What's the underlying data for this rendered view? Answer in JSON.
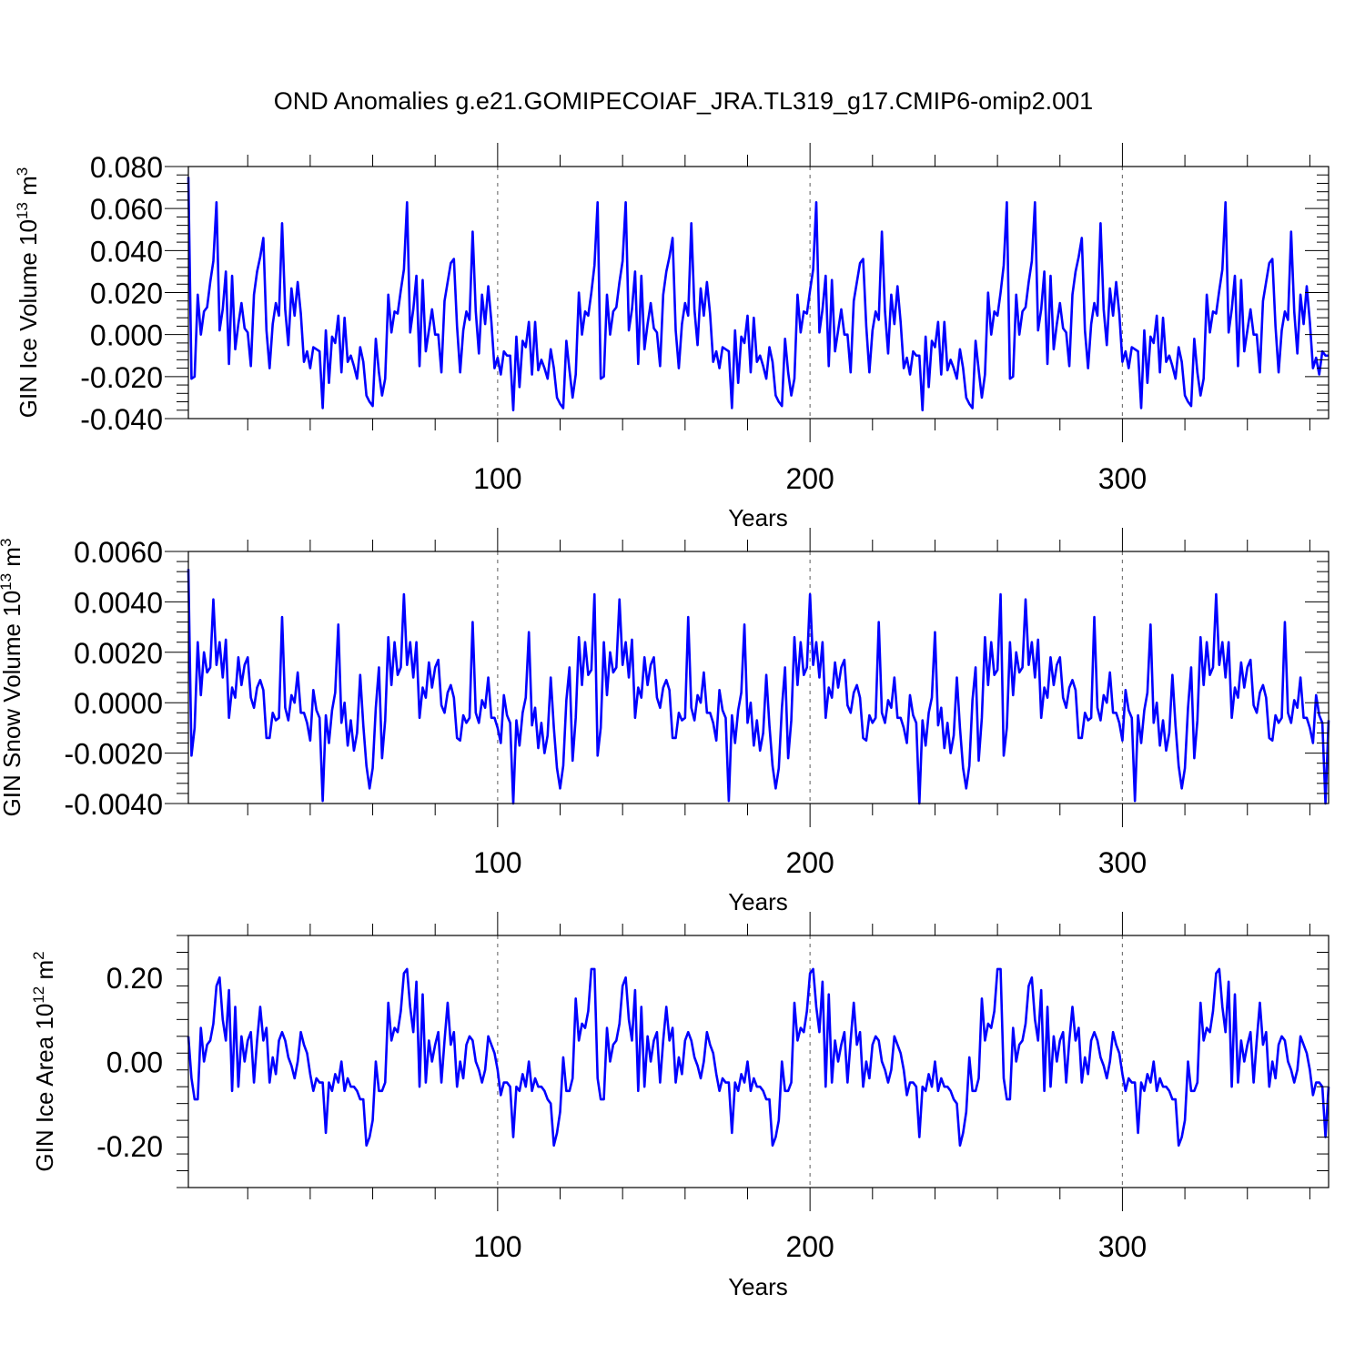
{
  "title": "OND Anomalies g.e21.GOMIPECOIAF_JRA.TL319_g17.CMIP6-omip2.001",
  "colors": {
    "series": "#0000ff",
    "axes": "#000000",
    "grid": "#777777",
    "background": "#ffffff"
  },
  "chart_data": [
    {
      "type": "line",
      "name": "ice-volume",
      "title": "",
      "xlabel": "Years",
      "ylabel": {
        "main": "GIN Ice Volume 10",
        "exp": "13",
        "unit": " m",
        "unit_exp": "3"
      },
      "xlim": [
        1,
        366
      ],
      "ylim": [
        -0.04,
        0.08
      ],
      "xticks": [
        100,
        200,
        300
      ],
      "xtick_labels": [
        "100",
        "200",
        "300"
      ],
      "yticks": [
        -0.04,
        -0.02,
        0.0,
        0.02,
        0.04,
        0.06,
        0.08
      ],
      "ytick_labels": [
        "-0.040",
        "-0.020",
        "0.000",
        "0.020",
        "0.040",
        "0.060",
        "0.080"
      ],
      "vlines": [
        100,
        200,
        300
      ],
      "cycle_start": 0.075,
      "cycle": [
        -0.021,
        -0.02,
        0.019,
        0.0,
        0.011,
        0.013,
        0.025,
        0.035,
        0.063,
        0.002,
        0.012,
        0.03,
        -0.014,
        0.028,
        -0.007,
        0.005,
        0.015,
        0.003,
        0.001,
        -0.015,
        0.019,
        0.03,
        0.037,
        0.046,
        0.002,
        -0.016,
        0.005,
        0.015,
        0.009,
        0.053,
        0.012,
        -0.005,
        0.022,
        0.009,
        0.025,
        0.01,
        -0.013,
        -0.008,
        -0.016,
        -0.006,
        -0.007,
        -0.008,
        -0.035,
        0.002,
        -0.023,
        -0.001,
        -0.004,
        0.009,
        -0.018,
        0.008,
        -0.013,
        -0.01,
        -0.015,
        -0.021,
        -0.006,
        -0.013,
        -0.029,
        -0.032,
        -0.034,
        -0.002,
        -0.018,
        -0.029,
        -0.021,
        0.019,
        0.001,
        0.011,
        0.01,
        0.021,
        0.031,
        0.063,
        0.001,
        0.012,
        0.028,
        -0.015,
        0.026,
        -0.008,
        0.002,
        0.012,
        0.0,
        0.0,
        -0.018,
        0.016,
        0.025,
        0.034,
        0.036,
        0.004,
        -0.018,
        0.002,
        0.011,
        0.007,
        0.049,
        0.011,
        -0.009,
        0.019,
        0.005,
        0.023,
        0.006,
        -0.016,
        -0.011,
        -0.019,
        -0.008,
        -0.01,
        -0.01,
        -0.036,
        -0.001,
        -0.025,
        -0.003,
        -0.006,
        0.006,
        -0.019,
        0.006,
        -0.017,
        -0.012,
        -0.016,
        -0.021,
        -0.007,
        -0.016,
        -0.03,
        -0.033,
        -0.035,
        -0.003,
        -0.017,
        -0.03,
        -0.019,
        0.02,
        0.0,
        0.011,
        0.009,
        0.02,
        0.033,
        0.063
      ],
      "length": 366
    },
    {
      "type": "line",
      "name": "snow-volume",
      "title": "",
      "xlabel": "Years",
      "ylabel": {
        "main": "GIN Snow Volume 10",
        "exp": "13",
        "unit": " m",
        "unit_exp": "3"
      },
      "xlim": [
        1,
        366
      ],
      "ylim": [
        -0.004,
        0.006
      ],
      "xticks": [
        100,
        200,
        300
      ],
      "xtick_labels": [
        "100",
        "200",
        "300"
      ],
      "yticks": [
        -0.004,
        -0.002,
        0.0,
        0.002,
        0.004,
        0.006
      ],
      "ytick_labels": [
        "-0.0040",
        "-0.0020",
        "0.0000",
        "0.0020",
        "0.0040",
        "0.0060"
      ],
      "vlines": [
        100,
        200,
        300
      ],
      "cycle_start": 0.0053,
      "cycle": [
        -0.0021,
        -0.001,
        0.0024,
        0.0003,
        0.002,
        0.0012,
        0.0014,
        0.0041,
        0.0015,
        0.0024,
        0.001,
        0.0025,
        -0.0006,
        0.0006,
        0.0002,
        0.0018,
        0.0007,
        0.0015,
        0.0018,
        0.0002,
        -0.0002,
        0.0006,
        0.0009,
        0.0005,
        -0.0014,
        -0.0014,
        -0.0004,
        -0.0007,
        -0.0006,
        0.0034,
        -0.0002,
        -0.0007,
        0.0003,
        0.0,
        0.0012,
        -0.0004,
        -0.0004,
        -0.0008,
        -0.0015,
        0.0005,
        -0.0003,
        -0.0006,
        -0.0039,
        -0.0005,
        -0.0016,
        -0.0003,
        0.0004,
        0.0031,
        -0.0008,
        0.0,
        -0.0017,
        -0.0007,
        -0.0019,
        -0.0012,
        0.0011,
        -0.0009,
        -0.0025,
        -0.0034,
        -0.0026,
        -0.0002,
        0.0014,
        -0.0022,
        -0.0007,
        0.0026,
        0.0007,
        0.0024,
        0.0011,
        0.0014,
        0.0043,
        0.0015,
        0.0024,
        0.001,
        0.0024,
        -0.0006,
        0.0006,
        0.0002,
        0.0016,
        0.0006,
        0.0014,
        0.0017,
        -0.0001,
        -0.0004,
        0.0004,
        0.0007,
        0.0002,
        -0.0014,
        -0.0015,
        -0.0005,
        -0.0008,
        -0.0006,
        0.0032,
        -0.0004,
        -0.0008,
        0.0001,
        -0.0002,
        0.001,
        -0.0006,
        -0.0006,
        -0.001,
        -0.0016,
        0.0003,
        -0.0005,
        -0.0008,
        -0.004,
        -0.0007,
        -0.0017,
        -0.0004,
        0.0002,
        0.0028,
        -0.0009,
        -0.0002,
        -0.0018,
        -0.0008,
        -0.002,
        -0.0013,
        0.001,
        -0.001,
        -0.0026,
        -0.0034,
        -0.0025,
        0.0001,
        0.0014,
        -0.0023,
        -0.0006,
        0.0026,
        0.0007,
        0.0024,
        0.0011,
        0.0013,
        0.0043
      ],
      "length": 366
    },
    {
      "type": "line",
      "name": "ice-area",
      "title": "",
      "xlabel": "Years",
      "ylabel": {
        "main": "GIN Ice Area 10",
        "exp": "12",
        "unit": " m",
        "unit_exp": "2"
      },
      "xlim": [
        1,
        366
      ],
      "ylim": [
        -0.3,
        0.3
      ],
      "xticks": [
        100,
        200,
        300
      ],
      "xtick_labels": [
        "100",
        "200",
        "300"
      ],
      "yticks": [
        -0.2,
        0.0,
        0.2
      ],
      "ytick_labels": [
        "-0.20",
        "0.00",
        "0.20"
      ],
      "vlines": [
        100,
        200,
        300
      ],
      "cycle_start": 0.06,
      "cycle": [
        -0.04,
        -0.09,
        -0.09,
        0.08,
        0.0,
        0.04,
        0.05,
        0.09,
        0.18,
        0.2,
        0.1,
        0.05,
        0.17,
        -0.07,
        0.13,
        -0.06,
        0.06,
        0.0,
        0.05,
        0.07,
        -0.05,
        0.05,
        0.13,
        0.05,
        0.08,
        -0.05,
        0.01,
        -0.03,
        0.05,
        0.07,
        0.05,
        0.01,
        -0.01,
        -0.04,
        0.0,
        0.07,
        0.04,
        0.02,
        -0.03,
        -0.07,
        -0.04,
        -0.05,
        -0.05,
        -0.17,
        -0.05,
        -0.07,
        -0.03,
        -0.05,
        0.0,
        -0.07,
        -0.04,
        -0.06,
        -0.06,
        -0.07,
        -0.09,
        -0.09,
        -0.2,
        -0.18,
        -0.14,
        0.0,
        -0.07,
        -0.07,
        -0.05,
        0.14,
        0.05,
        0.08,
        0.07,
        0.12,
        0.21,
        0.22,
        0.13,
        0.07,
        0.19,
        -0.06,
        0.16,
        -0.05,
        0.05,
        0.0,
        0.04,
        0.07,
        -0.05,
        0.05,
        0.14,
        0.04,
        0.07,
        -0.06,
        0.0,
        -0.04,
        0.04,
        0.06,
        0.05,
        0.0,
        -0.02,
        -0.05,
        -0.02,
        0.06,
        0.04,
        0.02,
        -0.02,
        -0.08,
        -0.05,
        -0.05,
        -0.06,
        -0.18,
        -0.06,
        -0.07,
        -0.03,
        -0.06,
        0.0,
        -0.07,
        -0.04,
        -0.06,
        -0.06,
        -0.07,
        -0.09,
        -0.1,
        -0.2,
        -0.17,
        -0.12,
        0.01,
        -0.07,
        -0.07,
        -0.04,
        0.15,
        0.05,
        0.09,
        0.08,
        0.12,
        0.22,
        0.22
      ],
      "length": 366
    }
  ]
}
